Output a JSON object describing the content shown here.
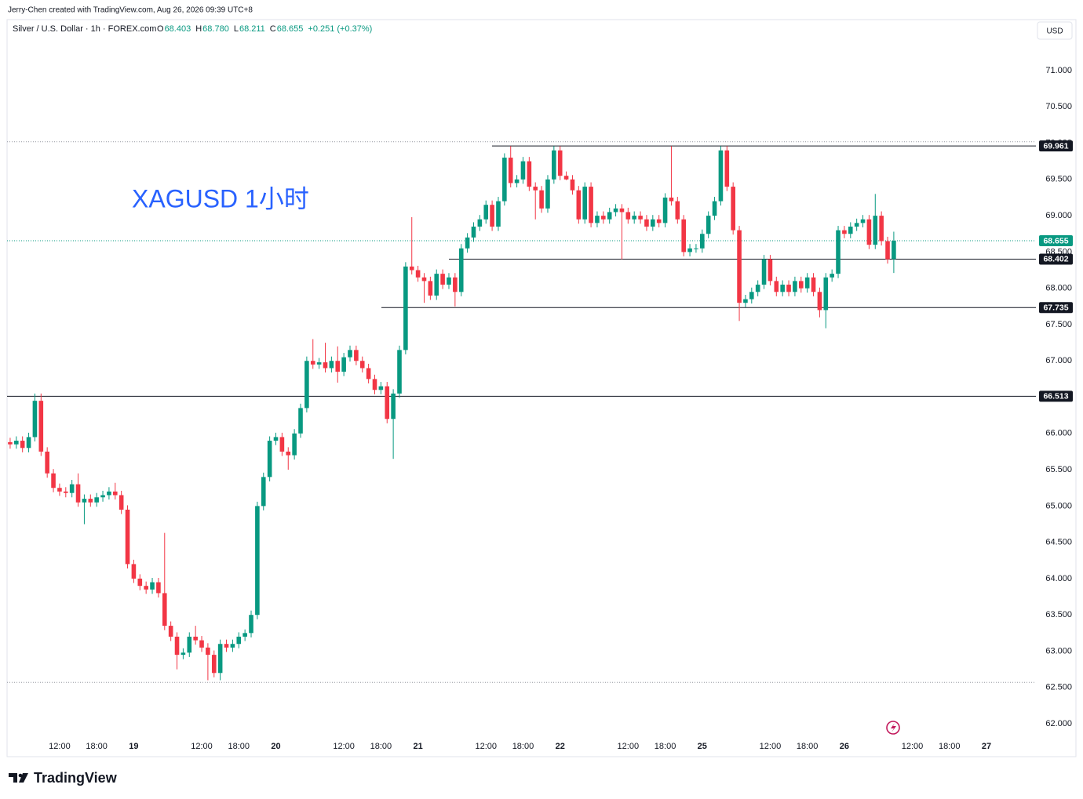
{
  "header": {
    "credit": "Jerry-Chen created with TradingView.com, Aug 26, 2026 09:39 UTC+8",
    "symbol": "Silver / U.S. Dollar · 1h · FOREX.com",
    "ohlc": [
      {
        "key": "O",
        "value": "68.403"
      },
      {
        "key": "H",
        "value": "68.780"
      },
      {
        "key": "L",
        "value": "68.211"
      },
      {
        "key": "C",
        "value": "68.655"
      }
    ],
    "change": "+0.251 (+0.37%)"
  },
  "currency": "USD",
  "logo": "TradingView",
  "chart_data": {
    "type": "candlestick",
    "annotation": "XAGUSD 1小时",
    "up_color": "#089981",
    "down_color": "#f23645",
    "open": [
      65.88,
      65.85,
      65.9,
      65.8,
      65.95,
      66.45,
      65.75,
      65.45,
      65.25,
      65.2,
      65.18,
      65.3,
      65.05,
      65.1,
      65.05,
      65.12,
      65.15,
      65.2,
      65.15,
      64.95,
      64.2,
      64.0,
      63.9,
      63.85,
      63.95,
      63.8,
      63.35,
      63.2,
      62.95,
      62.98,
      63.2,
      63.15,
      63.05,
      62.95,
      62.7,
      63.1,
      63.05,
      63.1,
      63.2,
      63.25,
      63.5,
      65.0,
      65.4,
      65.9,
      65.95,
      65.75,
      65.7,
      66.0,
      66.35,
      67.0,
      66.95,
      66.98,
      66.9,
      67.0,
      66.85,
      67.05,
      67.15,
      67.0,
      66.9,
      66.75,
      66.6,
      66.65,
      66.2,
      66.55,
      67.15,
      68.3,
      68.25,
      68.15,
      68.1,
      67.9,
      68.2,
      68.05,
      68.15,
      67.95,
      68.55,
      68.7,
      68.85,
      68.95,
      69.15,
      68.85,
      69.2,
      69.8,
      69.45,
      69.5,
      69.75,
      69.4,
      69.35,
      69.1,
      69.5,
      69.9,
      69.55,
      69.5,
      69.35,
      68.95,
      69.4,
      68.9,
      69.0,
      68.95,
      69.05,
      69.1,
      69.05,
      68.95,
      69.0,
      68.95,
      68.85,
      68.95,
      68.9,
      69.25,
      69.2,
      68.95,
      68.5,
      68.55,
      68.55,
      68.75,
      69.0,
      69.2,
      69.9,
      69.4,
      68.8,
      67.8,
      67.85,
      67.95,
      68.05,
      68.4,
      68.1,
      67.95,
      68.05,
      67.95,
      68.1,
      68.0,
      68.15,
      67.95,
      67.7,
      68.15,
      68.2,
      68.8,
      68.75,
      68.85,
      68.9,
      68.95,
      68.6,
      69.0,
      68.65,
      68.403
    ],
    "high": [
      65.94,
      65.96,
      65.96,
      66.01,
      66.55,
      66.55,
      65.81,
      65.51,
      65.31,
      65.26,
      65.36,
      65.45,
      65.16,
      65.16,
      65.18,
      65.21,
      65.26,
      65.32,
      65.21,
      65.01,
      64.26,
      64.06,
      63.96,
      64.01,
      64.01,
      64.63,
      63.41,
      63.26,
      63.04,
      63.26,
      63.35,
      63.21,
      63.11,
      63.01,
      63.16,
      63.16,
      63.16,
      63.26,
      63.3,
      63.56,
      65.06,
      65.46,
      65.96,
      66.01,
      66.01,
      65.81,
      66.06,
      66.41,
      67.06,
      67.3,
      67.04,
      67.25,
      67.06,
      67.2,
      67.11,
      67.21,
      67.21,
      67.06,
      66.96,
      66.81,
      66.71,
      66.71,
      66.61,
      67.21,
      68.36,
      68.98,
      68.31,
      68.21,
      68.16,
      68.26,
      68.26,
      68.21,
      68.21,
      68.61,
      68.76,
      68.91,
      69.01,
      69.21,
      69.21,
      69.26,
      69.86,
      69.96,
      69.56,
      69.81,
      69.81,
      69.46,
      69.41,
      69.56,
      69.96,
      69.96,
      69.61,
      69.56,
      69.41,
      69.46,
      69.46,
      69.06,
      69.06,
      69.11,
      69.16,
      69.16,
      69.11,
      69.06,
      69.06,
      69.01,
      69.01,
      69.01,
      69.31,
      69.96,
      69.26,
      69.01,
      68.61,
      68.61,
      68.81,
      69.06,
      69.26,
      69.96,
      69.96,
      69.46,
      68.86,
      67.91,
      68.01,
      68.11,
      68.46,
      68.46,
      68.16,
      68.11,
      68.11,
      68.16,
      68.16,
      68.21,
      68.21,
      68.01,
      68.21,
      68.26,
      68.86,
      68.86,
      68.91,
      68.96,
      69.01,
      69.01,
      69.3,
      69.06,
      68.71,
      68.78
    ],
    "low": [
      65.79,
      65.79,
      65.74,
      65.74,
      65.89,
      65.69,
      65.39,
      65.19,
      65.14,
      65.12,
      65.12,
      64.99,
      64.75,
      64.99,
      64.99,
      65.06,
      65.09,
      65.09,
      64.89,
      64.14,
      63.94,
      63.84,
      63.79,
      63.79,
      63.74,
      63.29,
      63.14,
      62.75,
      62.89,
      62.92,
      63.09,
      62.99,
      62.6,
      62.64,
      62.6,
      62.99,
      62.99,
      63.04,
      63.14,
      63.19,
      63.44,
      64.94,
      65.34,
      65.84,
      65.69,
      65.5,
      65.64,
      65.94,
      66.29,
      66.89,
      66.89,
      66.84,
      66.84,
      66.7,
      66.79,
      66.99,
      66.94,
      66.84,
      66.69,
      66.54,
      66.54,
      66.14,
      65.65,
      66.49,
      67.09,
      68.19,
      68.09,
      67.8,
      67.84,
      67.84,
      67.99,
      67.99,
      67.75,
      67.89,
      68.49,
      68.64,
      68.79,
      68.89,
      68.79,
      68.79,
      69.14,
      69.39,
      69.39,
      69.44,
      69.34,
      68.95,
      69.04,
      69.04,
      69.44,
      69.49,
      69.49,
      69.29,
      68.89,
      68.89,
      68.84,
      68.84,
      68.89,
      68.89,
      68.99,
      68.4,
      68.89,
      68.89,
      68.89,
      68.79,
      68.79,
      68.84,
      68.84,
      69.14,
      68.89,
      68.44,
      68.44,
      68.49,
      68.49,
      68.69,
      68.94,
      69.14,
      69.34,
      68.74,
      67.55,
      67.74,
      67.79,
      67.89,
      67.99,
      68.04,
      67.89,
      67.89,
      67.89,
      67.89,
      67.94,
      67.94,
      67.89,
      67.6,
      67.45,
      68.09,
      68.14,
      68.69,
      68.69,
      68.79,
      68.84,
      68.54,
      68.54,
      68.59,
      68.34,
      68.211
    ],
    "close": [
      65.85,
      65.9,
      65.8,
      65.95,
      66.45,
      65.75,
      65.45,
      65.25,
      65.2,
      65.18,
      65.3,
      65.05,
      65.1,
      65.05,
      65.12,
      65.15,
      65.2,
      65.15,
      64.95,
      64.2,
      64.0,
      63.9,
      63.85,
      63.95,
      63.8,
      63.35,
      63.2,
      62.95,
      62.98,
      63.2,
      63.15,
      63.05,
      62.95,
      62.7,
      63.1,
      63.05,
      63.1,
      63.2,
      63.25,
      63.5,
      65.0,
      65.4,
      65.9,
      65.95,
      65.75,
      65.7,
      66.0,
      66.35,
      67.0,
      66.95,
      66.98,
      66.9,
      67.0,
      66.85,
      67.05,
      67.15,
      67.0,
      66.9,
      66.75,
      66.6,
      66.65,
      66.2,
      66.55,
      67.15,
      68.3,
      68.25,
      68.15,
      68.1,
      67.9,
      68.2,
      68.05,
      68.15,
      67.95,
      68.55,
      68.7,
      68.85,
      68.95,
      69.15,
      68.85,
      69.2,
      69.8,
      69.45,
      69.5,
      69.75,
      69.4,
      69.35,
      69.1,
      69.5,
      69.9,
      69.55,
      69.5,
      69.35,
      68.95,
      69.4,
      68.9,
      69.0,
      68.95,
      69.05,
      69.1,
      69.05,
      68.95,
      69.0,
      68.95,
      68.85,
      68.95,
      68.9,
      69.25,
      69.2,
      68.95,
      68.5,
      68.55,
      68.55,
      68.75,
      69.0,
      69.2,
      69.9,
      69.4,
      68.8,
      67.8,
      67.85,
      67.95,
      68.05,
      68.4,
      68.1,
      67.95,
      68.05,
      67.95,
      68.1,
      68.0,
      68.15,
      67.95,
      67.7,
      68.15,
      68.2,
      68.8,
      68.75,
      68.85,
      68.9,
      68.95,
      68.6,
      69.0,
      68.65,
      68.4,
      68.655
    ],
    "xlim": [
      -0.5,
      166
    ],
    "xticks": [
      {
        "value": 8,
        "label": "12:00"
      },
      {
        "value": 14,
        "label": "18:00"
      },
      {
        "value": 20,
        "label": "19"
      },
      {
        "value": 31,
        "label": "12:00"
      },
      {
        "value": 37,
        "label": "18:00"
      },
      {
        "value": 43,
        "label": "20"
      },
      {
        "value": 54,
        "label": "12:00"
      },
      {
        "value": 60,
        "label": "18:00"
      },
      {
        "value": 66,
        "label": "21"
      },
      {
        "value": 77,
        "label": "12:00"
      },
      {
        "value": 83,
        "label": "18:00"
      },
      {
        "value": 89,
        "label": "22"
      },
      {
        "value": 100,
        "label": "12:00"
      },
      {
        "value": 106,
        "label": "18:00"
      },
      {
        "value": 112,
        "label": "25"
      },
      {
        "value": 123,
        "label": "12:00"
      },
      {
        "value": 129,
        "label": "18:00"
      },
      {
        "value": 135,
        "label": "26"
      },
      {
        "value": 146,
        "label": "12:00"
      },
      {
        "value": 152,
        "label": "18:00"
      },
      {
        "value": 158,
        "label": "27"
      }
    ],
    "ylim": [
      61.817,
      71.432
    ],
    "yticks": [
      {
        "value": 62,
        "label": "62.000"
      },
      {
        "value": 62.5,
        "label": "62.500"
      },
      {
        "value": 63,
        "label": "63.000"
      },
      {
        "value": 63.5,
        "label": "63.500"
      },
      {
        "value": 64,
        "label": "64.000"
      },
      {
        "value": 64.5,
        "label": "64.500"
      },
      {
        "value": 65,
        "label": "65.000"
      },
      {
        "value": 65.5,
        "label": "65.500"
      },
      {
        "value": 66,
        "label": "66.000"
      },
      {
        "value": 66.5,
        "label": "66.500"
      },
      {
        "value": 67,
        "label": "67.000"
      },
      {
        "value": 67.5,
        "label": "67.500"
      },
      {
        "value": 68,
        "label": "68.000"
      },
      {
        "value": 68.5,
        "label": "68.500"
      },
      {
        "value": 69,
        "label": "69.000"
      },
      {
        "value": 69.5,
        "label": "69.500"
      },
      {
        "value": 70,
        "label": "70.000"
      },
      {
        "value": 70.5,
        "label": "70.500"
      },
      {
        "value": 71,
        "label": "71.000"
      }
    ],
    "levels": [
      {
        "value": 69.961,
        "label": "69.961"
      },
      {
        "value": 68.402,
        "label": "68.402"
      },
      {
        "value": 67.735,
        "label": "67.735"
      },
      {
        "value": 66.513,
        "label": "66.513"
      }
    ],
    "current_price": {
      "value": 68.655,
      "label": "68.655"
    },
    "dotted_lines": [
      70.02,
      62.57
    ]
  }
}
